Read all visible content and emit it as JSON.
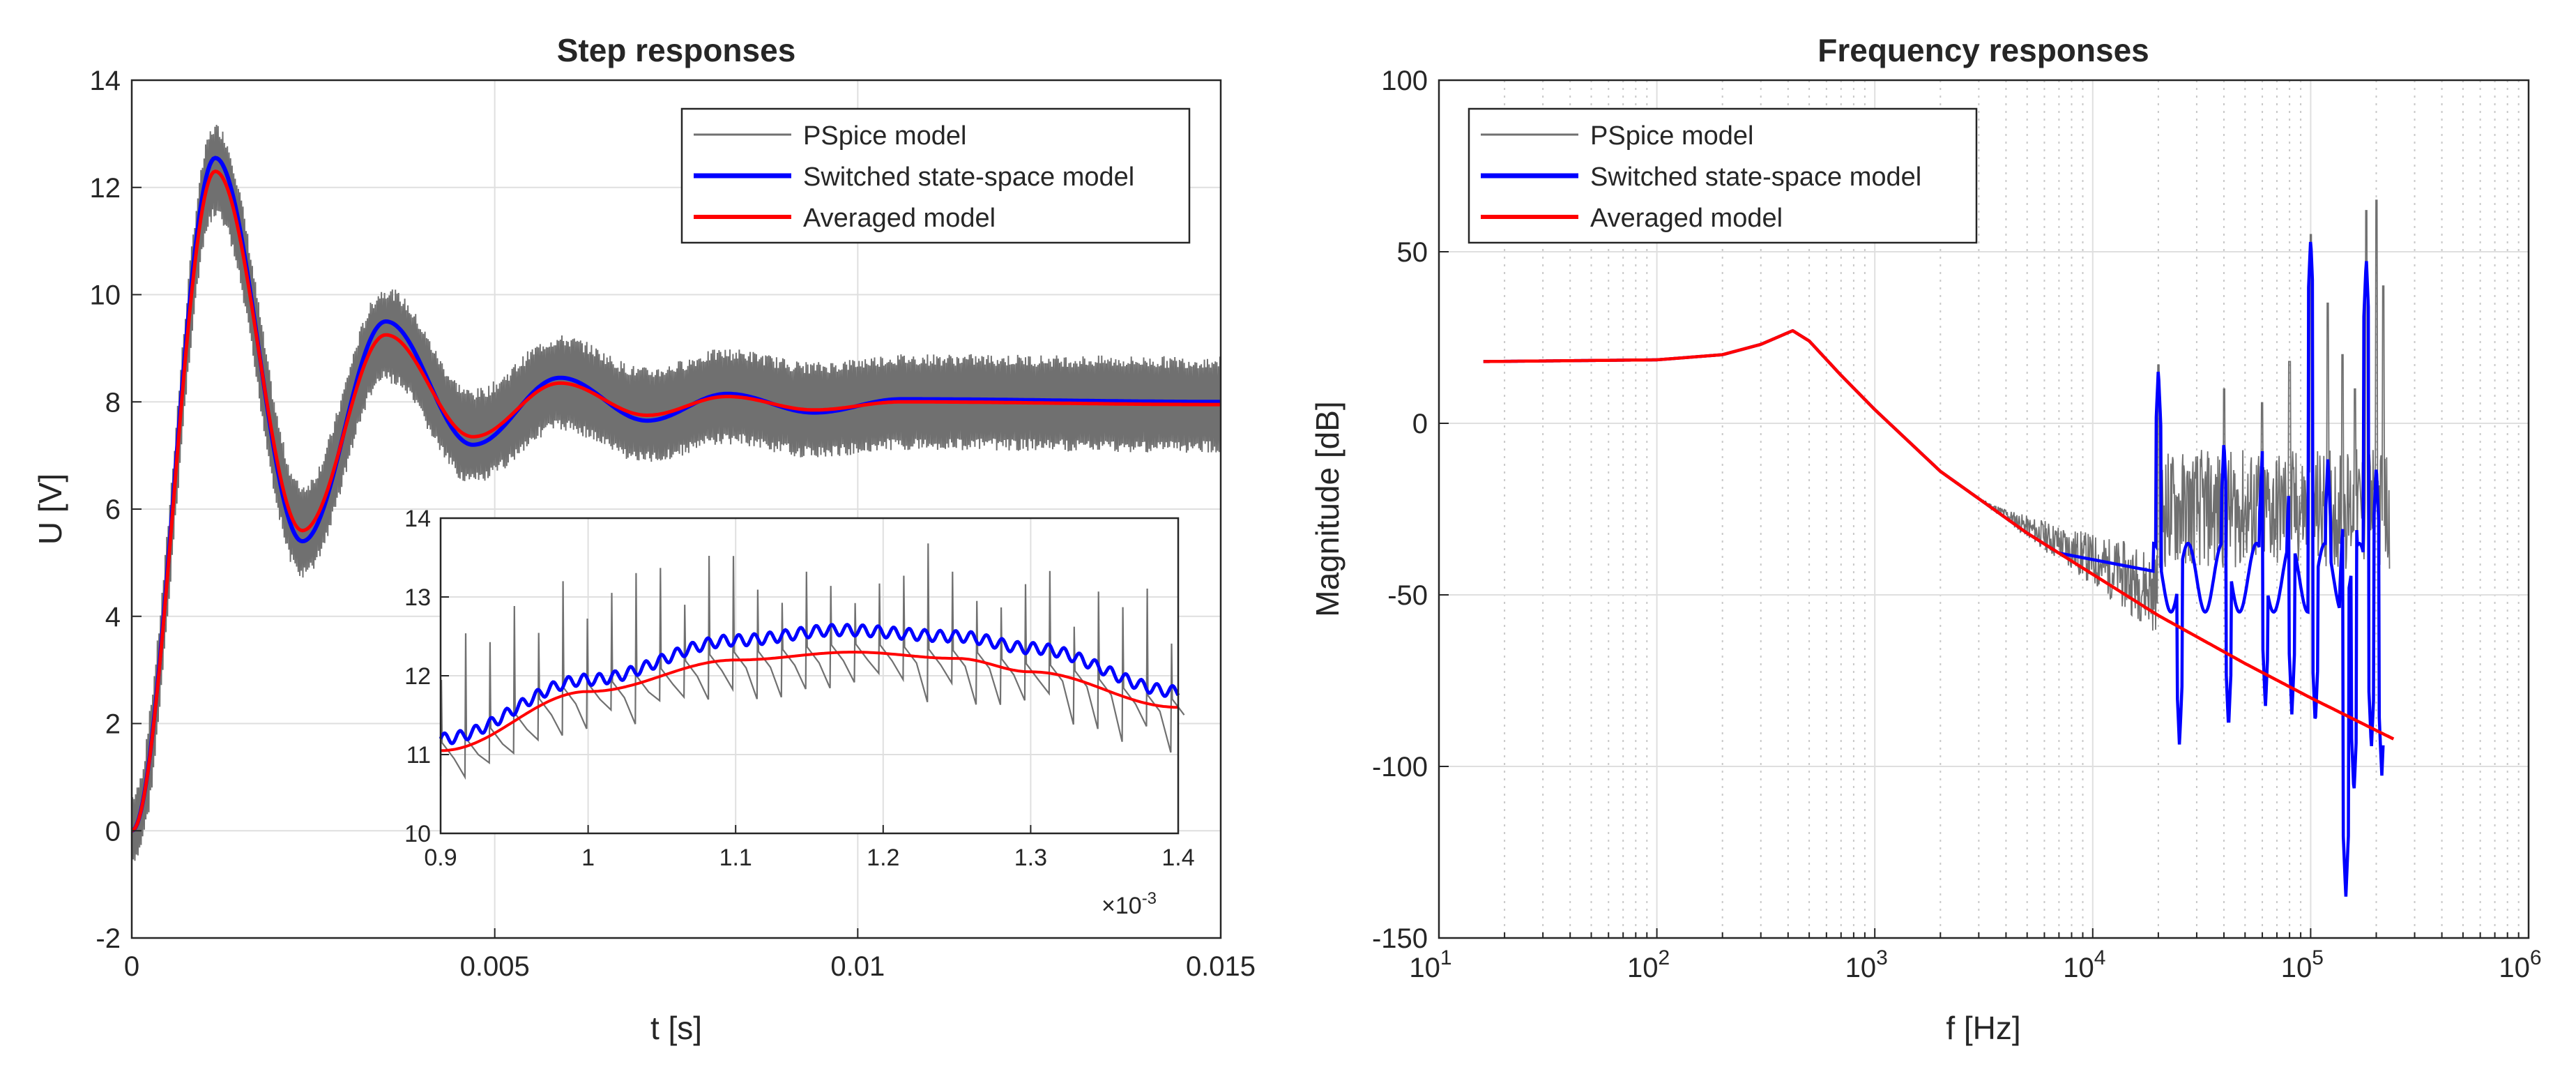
{
  "chart_data": [
    {
      "type": "line",
      "title": "Step responses",
      "xlabel": "t [s]",
      "ylabel": "U [V]",
      "xlim": [
        0,
        0.015
      ],
      "ylim": [
        -2,
        14
      ],
      "xticks": [
        0,
        0.005,
        0.01,
        0.015
      ],
      "xtick_labels": [
        "0",
        "0.005",
        "0.01",
        "0.015"
      ],
      "yticks": [
        -2,
        0,
        2,
        4,
        6,
        8,
        10,
        12,
        14
      ],
      "ytick_labels": [
        "-2",
        "0",
        "2",
        "4",
        "6",
        "8",
        "10",
        "12",
        "14"
      ],
      "grid": true,
      "legend_position": "top-right",
      "legend": [
        "PSpice model",
        "Switched state-space model",
        "Averaged model"
      ],
      "series": [
        {
          "name": "PSpice model",
          "color": "#707070",
          "description": "averaged response with ripple of about ±0.9 V"
        },
        {
          "name": "Switched state-space model",
          "color": "#0000ff",
          "extrema": [
            [
              0,
              0
            ],
            [
              0.00115,
              12.55
            ],
            [
              0.00235,
              5.4
            ],
            [
              0.0035,
              9.5
            ],
            [
              0.0047,
              7.2
            ],
            [
              0.0059,
              8.45
            ],
            [
              0.0071,
              7.65
            ],
            [
              0.0082,
              8.15
            ],
            [
              0.0094,
              7.8
            ],
            [
              0.0106,
              8.05
            ],
            [
              0.015,
              8.0
            ]
          ]
        },
        {
          "name": "Averaged model",
          "color": "#ff0000",
          "extrema": [
            [
              0,
              0
            ],
            [
              0.00115,
              12.3
            ],
            [
              0.00235,
              5.6
            ],
            [
              0.0035,
              9.25
            ],
            [
              0.0047,
              7.35
            ],
            [
              0.0059,
              8.35
            ],
            [
              0.0071,
              7.75
            ],
            [
              0.0082,
              8.1
            ],
            [
              0.0094,
              7.85
            ],
            [
              0.0106,
              8.0
            ],
            [
              0.015,
              7.95
            ]
          ]
        }
      ],
      "inset": {
        "xlim": [
          0.9,
          1.4
        ],
        "ylim": [
          10,
          14
        ],
        "xticks": [
          0.9,
          1,
          1.1,
          1.2,
          1.3,
          1.4
        ],
        "xtick_labels": [
          "0.9",
          "1",
          "1.1",
          "1.2",
          "1.3",
          "1.4"
        ],
        "yticks": [
          10,
          11,
          12,
          13,
          14
        ],
        "ytick_labels": [
          "10",
          "11",
          "12",
          "13",
          "14"
        ],
        "x_multiplier": "×10",
        "x_multiplier_exp": "-3",
        "series": [
          {
            "name": "PSpice model",
            "color": "#707070"
          },
          {
            "name": "Switched state-space model",
            "color": "#0000ff",
            "points": [
              [
                0.9,
                11.2
              ],
              [
                1.0,
                11.95
              ],
              [
                1.1,
                12.45
              ],
              [
                1.17,
                12.58
              ],
              [
                1.25,
                12.5
              ],
              [
                1.3,
                12.35
              ],
              [
                1.4,
                11.8
              ]
            ]
          },
          {
            "name": "Averaged model",
            "color": "#ff0000",
            "points": [
              [
                0.9,
                11.05
              ],
              [
                1.0,
                11.8
              ],
              [
                1.1,
                12.2
              ],
              [
                1.18,
                12.3
              ],
              [
                1.25,
                12.22
              ],
              [
                1.3,
                12.05
              ],
              [
                1.4,
                11.6
              ]
            ]
          }
        ]
      }
    },
    {
      "type": "line",
      "title": "Frequency responses",
      "xlabel": "f [Hz]",
      "ylabel": "Magnitude [dB]",
      "xscale": "log",
      "xlim": [
        10,
        1000000
      ],
      "ylim": [
        -150,
        100
      ],
      "xtick_base": "10",
      "xtick_exponents": [
        "1",
        "2",
        "3",
        "4",
        "5",
        "6"
      ],
      "yticks": [
        -150,
        -100,
        -50,
        0,
        50,
        100
      ],
      "ytick_labels": [
        "-150",
        "-100",
        "-50",
        "0",
        "50",
        "100"
      ],
      "grid": true,
      "legend_position": "top-left",
      "legend": [
        "PSpice model",
        "Switched state-space model",
        "Averaged model"
      ],
      "series": [
        {
          "name": "PSpice model",
          "color": "#707070",
          "description": "follows the models to ~3 kHz, then noisy; resonance spikes near 20 kHz and harmonics"
        },
        {
          "name": "Switched state-space model",
          "color": "#0000ff",
          "description": "follows averaged model to ~7 kHz, then resonant peaks and notches above 20 kHz"
        },
        {
          "name": "Averaged model",
          "color": "#ff0000",
          "points": [
            [
              16,
              18
            ],
            [
              100,
              18.5
            ],
            [
              200,
              20
            ],
            [
              300,
              23
            ],
            [
              420,
              27
            ],
            [
              500,
              24
            ],
            [
              700,
              14
            ],
            [
              1000,
              4
            ],
            [
              2000,
              -14
            ],
            [
              5000,
              -32
            ],
            [
              10000,
              -44
            ],
            [
              20000,
              -56
            ],
            [
              50000,
              -70
            ],
            [
              100000,
              -80
            ],
            [
              240000,
              -92
            ]
          ]
        }
      ]
    }
  ]
}
